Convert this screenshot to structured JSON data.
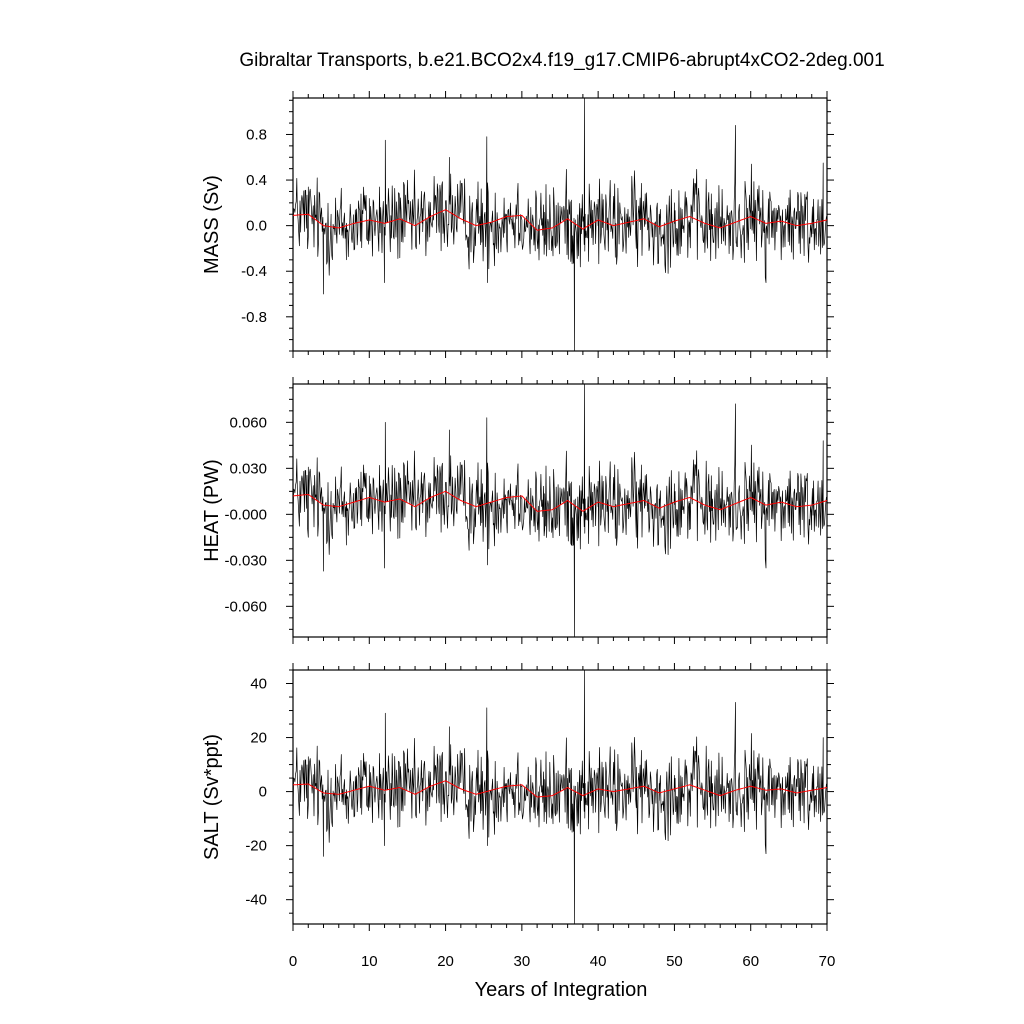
{
  "chart_data": {
    "type": "line",
    "title": "Gibraltar Transports, b.e21.BCO2x4.f19_g17.CMIP6-abrupt4xCO2-2deg.001",
    "xlabel": "Years of Integration",
    "xlim": [
      0,
      70
    ],
    "xticks": [
      "0",
      "10",
      "20",
      "30",
      "40",
      "50",
      "60",
      "70"
    ],
    "colors": {
      "raw": "#000000",
      "smoothed": "#ff0000"
    },
    "panels": [
      {
        "ylabel": "MASS (Sv)",
        "ylim": [
          -1.1,
          1.12
        ],
        "yticks": [
          "0.8",
          "0.4",
          "0.0",
          "-0.4",
          "-0.8"
        ],
        "ytick_values": [
          0.8,
          0.4,
          0.0,
          -0.4,
          -0.8
        ],
        "raw_monthly_approx": {
          "x": [
            0,
            2,
            4,
            5,
            7,
            10,
            12,
            12.1,
            14,
            17,
            20.5,
            23,
            25.4,
            25.5,
            28,
            30,
            33,
            35,
            36.5,
            36.9,
            37,
            38.2,
            38.3,
            40,
            43,
            45,
            48,
            50,
            52,
            55,
            58,
            58.1,
            60,
            62,
            65,
            68,
            69.5,
            70
          ],
          "y": [
            0.05,
            -0.1,
            -0.6,
            0.1,
            -0.3,
            0.05,
            -0.5,
            0.75,
            0.1,
            0.15,
            0.6,
            -0.1,
            0.78,
            -0.5,
            0.1,
            0.05,
            -0.1,
            0.1,
            -0.2,
            -1.1,
            0.05,
            1.12,
            0.1,
            0.0,
            0.1,
            -0.2,
            0.1,
            0.2,
            -0.1,
            0.1,
            0.88,
            -0.1,
            0.1,
            -0.5,
            0.2,
            -0.1,
            0.55,
            0.05
          ]
        },
        "smoothed": {
          "x": [
            0,
            2,
            4,
            6,
            8,
            10,
            12,
            14,
            16,
            18,
            20,
            22,
            24,
            26,
            28,
            30,
            32,
            34,
            36,
            38,
            40,
            42,
            44,
            46,
            48,
            50,
            52,
            54,
            56,
            58,
            60,
            62,
            64,
            66,
            68,
            70
          ],
          "y": [
            0.09,
            0.1,
            0.0,
            -0.02,
            0.02,
            0.05,
            0.02,
            0.06,
            0.0,
            0.08,
            0.14,
            0.06,
            0.0,
            0.03,
            0.08,
            0.09,
            -0.04,
            -0.02,
            0.06,
            -0.03,
            0.05,
            0.0,
            0.03,
            0.06,
            -0.01,
            0.04,
            0.08,
            0.02,
            -0.02,
            0.03,
            0.08,
            0.02,
            0.04,
            0.0,
            0.02,
            0.05
          ]
        }
      },
      {
        "ylabel": "HEAT (PW)",
        "ylim": [
          -0.08,
          0.085
        ],
        "yticks": [
          "0.060",
          "0.030",
          "-0.000",
          "-0.030",
          "-0.060"
        ],
        "ytick_values": [
          0.06,
          0.03,
          0.0,
          -0.03,
          -0.06
        ],
        "raw_monthly_approx": {
          "x": [
            0,
            2,
            4,
            5,
            7,
            10,
            12,
            12.1,
            14,
            17,
            20.5,
            23,
            25.4,
            25.5,
            28,
            30,
            33,
            35,
            36.5,
            36.9,
            37,
            38.2,
            38.3,
            40,
            43,
            45,
            48,
            50,
            52,
            55,
            58,
            58.1,
            60,
            62,
            65,
            68,
            69.5,
            70
          ],
          "y": [
            0.01,
            -0.015,
            -0.037,
            0.015,
            -0.02,
            0.01,
            -0.035,
            0.06,
            0.01,
            0.02,
            0.055,
            -0.01,
            0.063,
            -0.033,
            0.01,
            0.01,
            -0.01,
            0.01,
            -0.02,
            -0.08,
            0.01,
            0.085,
            0.01,
            0.005,
            0.01,
            -0.015,
            0.01,
            0.02,
            -0.01,
            0.01,
            0.072,
            -0.01,
            0.015,
            -0.035,
            0.02,
            -0.01,
            0.048,
            0.01
          ]
        },
        "smoothed": {
          "x": [
            0,
            2,
            4,
            6,
            8,
            10,
            12,
            14,
            16,
            18,
            20,
            22,
            24,
            26,
            28,
            30,
            32,
            34,
            36,
            38,
            40,
            42,
            44,
            46,
            48,
            50,
            52,
            54,
            56,
            58,
            60,
            62,
            64,
            66,
            68,
            70
          ],
          "y": [
            0.012,
            0.013,
            0.006,
            0.005,
            0.008,
            0.011,
            0.008,
            0.01,
            0.005,
            0.011,
            0.015,
            0.009,
            0.005,
            0.008,
            0.011,
            0.012,
            0.002,
            0.003,
            0.009,
            0.002,
            0.008,
            0.005,
            0.007,
            0.009,
            0.004,
            0.008,
            0.011,
            0.006,
            0.003,
            0.007,
            0.011,
            0.006,
            0.008,
            0.005,
            0.006,
            0.009
          ]
        }
      },
      {
        "ylabel": "SALT (Sv*ppt)",
        "ylim": [
          -49,
          45
        ],
        "yticks": [
          "40",
          "20",
          "0",
          "-20",
          "-40"
        ],
        "ytick_values": [
          40,
          20,
          0,
          -20,
          -40
        ],
        "raw_monthly_approx": {
          "x": [
            0,
            2,
            4,
            5,
            7,
            10,
            12,
            12.1,
            14,
            17,
            20.5,
            23,
            25.4,
            25.5,
            28,
            30,
            33,
            35,
            36.5,
            36.9,
            37,
            38.2,
            38.3,
            40,
            43,
            45,
            48,
            50,
            52,
            55,
            58,
            58.1,
            60,
            62,
            65,
            68,
            69.5,
            70
          ],
          "y": [
            2,
            -5,
            -24,
            5,
            -10,
            2,
            -20,
            29,
            2,
            5,
            24,
            -3,
            31,
            -20,
            3,
            2,
            -4,
            3,
            -8,
            -49,
            2,
            45,
            3,
            0,
            3,
            -6,
            3,
            6,
            -4,
            3,
            33,
            -4,
            4,
            -23,
            6,
            -4,
            20,
            2
          ]
        },
        "smoothed": {
          "x": [
            0,
            2,
            4,
            6,
            8,
            10,
            12,
            14,
            16,
            18,
            20,
            22,
            24,
            26,
            28,
            30,
            32,
            34,
            36,
            38,
            40,
            42,
            44,
            46,
            48,
            50,
            52,
            54,
            56,
            58,
            60,
            62,
            64,
            66,
            68,
            70
          ],
          "y": [
            2.5,
            2.8,
            -0.5,
            -1.0,
            0.5,
            2.0,
            0.5,
            1.5,
            -1.0,
            2.0,
            4.0,
            1.0,
            -1.0,
            0.5,
            2.0,
            2.5,
            -2.0,
            -1.5,
            1.5,
            -1.5,
            1.0,
            0.0,
            1.0,
            2.0,
            -0.5,
            1.0,
            2.5,
            0.5,
            -1.5,
            0.5,
            2.0,
            0.5,
            1.0,
            -0.5,
            0.5,
            1.5
          ]
        }
      }
    ]
  }
}
